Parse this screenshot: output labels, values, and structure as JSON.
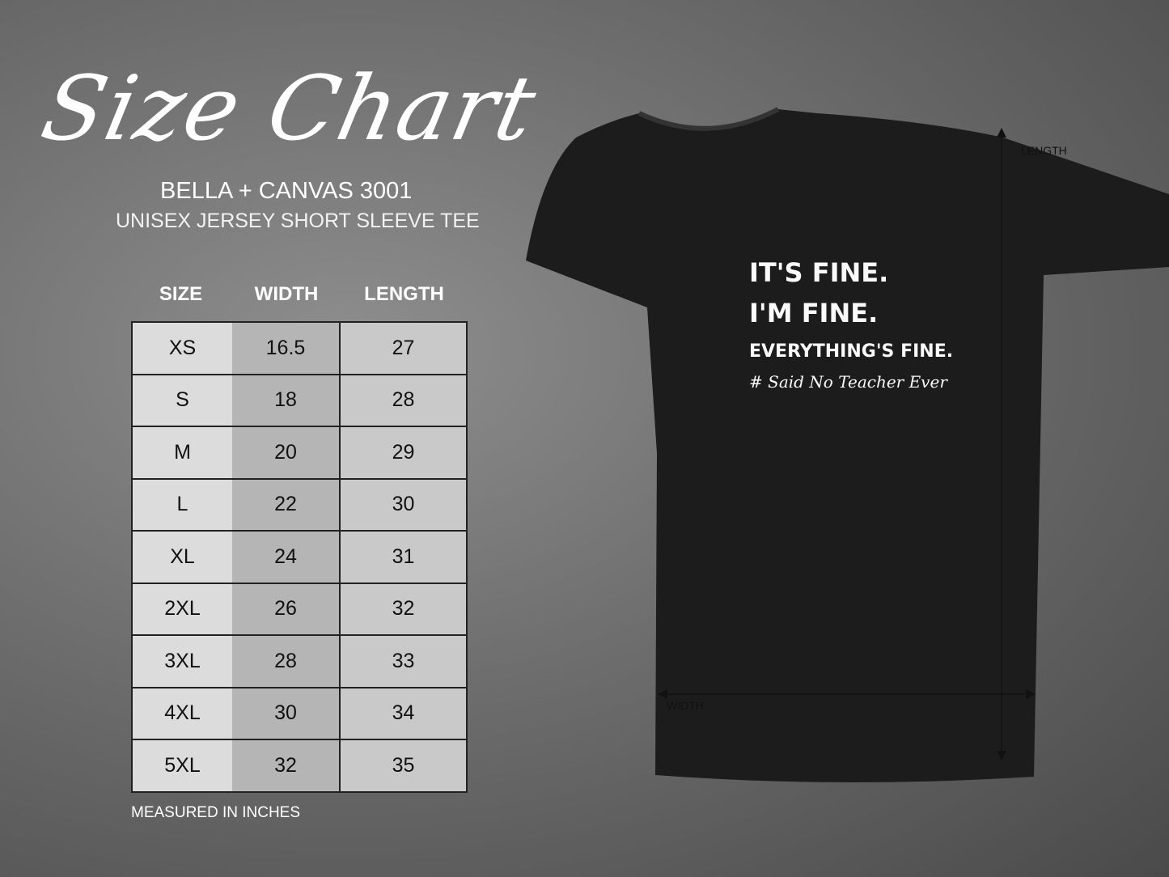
{
  "header": {
    "title": "Size Chart",
    "brand": "BELLA + CANVAS 3001",
    "subtitle": "UNISEX JERSEY SHORT SLEEVE TEE"
  },
  "table": {
    "columns": [
      "SIZE",
      "WIDTH",
      "LENGTH"
    ],
    "rows": [
      [
        "XS",
        "16.5",
        "27"
      ],
      [
        "S",
        "18",
        "28"
      ],
      [
        "M",
        "20",
        "29"
      ],
      [
        "L",
        "22",
        "30"
      ],
      [
        "XL",
        "24",
        "31"
      ],
      [
        "2XL",
        "26",
        "32"
      ],
      [
        "3XL",
        "28",
        "33"
      ],
      [
        "4XL",
        "30",
        "34"
      ],
      [
        "5XL",
        "32",
        "35"
      ]
    ],
    "note": "MEASURED IN INCHES"
  },
  "shirt": {
    "color": "#1c1c1c",
    "lines": [
      "IT'S FINE.",
      "I'M FINE.",
      "EVERYTHING'S FINE.",
      "# Said No Teacher Ever"
    ],
    "length_label": "LENGTH",
    "width_label": "WIDTH"
  }
}
